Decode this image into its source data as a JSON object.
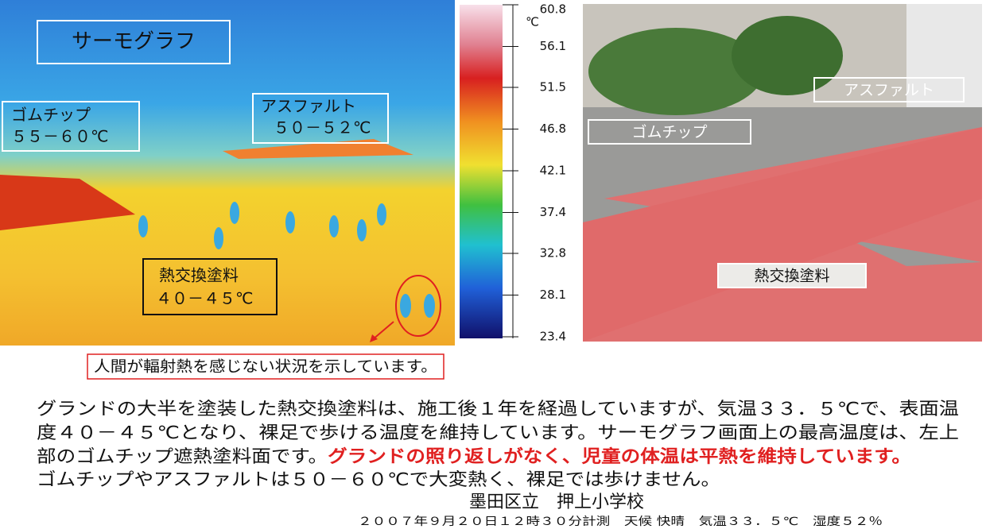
{
  "thermograph": {
    "title": "サーモグラフ",
    "labels": [
      {
        "name": "ゴムチップ",
        "temp": "５５－６０℃"
      },
      {
        "name": "アスファルト",
        "temp": "５０－５２℃"
      },
      {
        "name": "熱交換塗料",
        "temp": "４０－４５℃"
      }
    ]
  },
  "scale": {
    "unit": "℃",
    "ticks": [
      60.8,
      56.1,
      51.5,
      46.8,
      42.1,
      37.4,
      32.8,
      28.1,
      23.4
    ]
  },
  "photo": {
    "labels": [
      "アスファルト",
      "ゴムチップ",
      "熱交換塗料"
    ]
  },
  "caption": "人間が輻射熱を感じない状況を示しています。",
  "body": {
    "line1": "グランドの大半を塗装した熱交換塗料は、施工後１年を経過していますが、気温３３．５℃で、表面温",
    "line2": "度４０－４５℃となり、裸足で歩ける温度を維持しています。サーモグラフ画面上の最高温度は、左上",
    "line3": "部のゴムチップ遮熱塗料面です。",
    "line3_highlight": "グランドの照り返しがなく、児童の体温は平熱を維持しています。",
    "line4": "ゴムチップやアスファルトは５０－６０℃で大変熱く、裸足では歩けません。"
  },
  "school": "墨田区立　押上小学校",
  "footer": "２００７年９月２０日１２時３０分計測　天候 快晴　気温３３．５℃　湿度５２％"
}
